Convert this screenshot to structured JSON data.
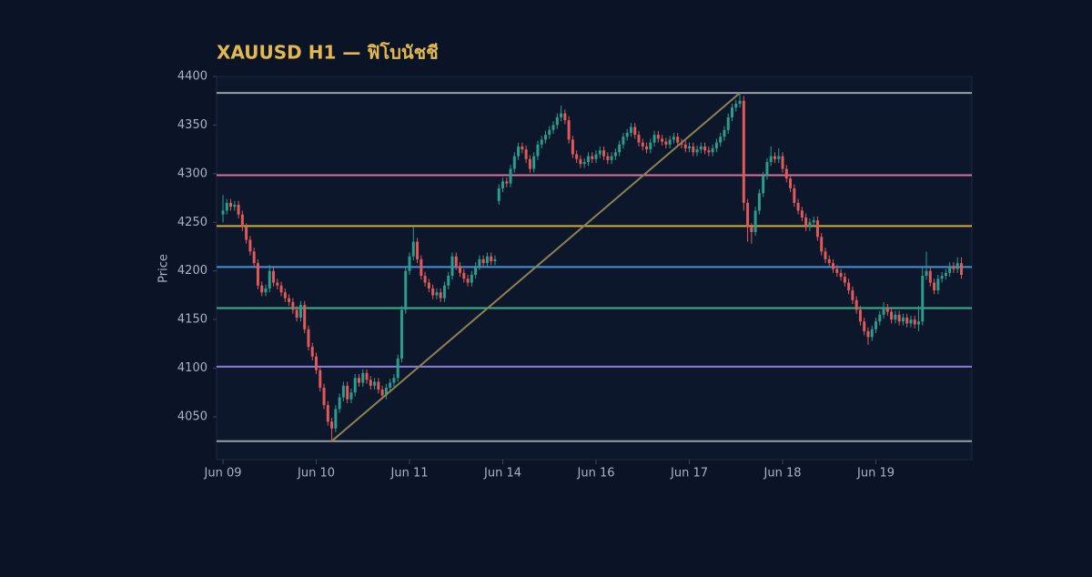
{
  "chart_data": {
    "type": "candlestick",
    "title": "XAUUSD H1 — ฟิโบนัชชี",
    "y_label": "Price",
    "up_color": "#2a9d8f",
    "down_color": "#e05a5a",
    "ylim": [
      4006,
      4400
    ],
    "yticks": [
      4050,
      4100,
      4150,
      4200,
      4250,
      4300,
      4350,
      4400
    ],
    "xlim": [
      -1.64,
      192.7
    ],
    "xticks": [
      {
        "value": 0,
        "label": "Jun 09"
      },
      {
        "value": 24,
        "label": "Jun 10"
      },
      {
        "value": 48,
        "label": "Jun 11"
      },
      {
        "value": 72,
        "label": "Jun 14"
      },
      {
        "value": 96,
        "label": "Jun 16"
      },
      {
        "value": 120,
        "label": "Jun 17"
      },
      {
        "value": 144,
        "label": "Jun 18"
      },
      {
        "value": 168,
        "label": "Jun 19"
      }
    ],
    "fib": {
      "low": 4025,
      "high": 4383,
      "low_index": 28,
      "high_index": 133,
      "trend_color": "#8f8150",
      "levels": [
        {
          "value": 4383,
          "color": "#9aa0a8"
        },
        {
          "value": 4298.5,
          "color": "#d9739a"
        },
        {
          "value": 4246.2,
          "color": "#d4a935"
        },
        {
          "value": 4204,
          "color": "#4a90d9"
        },
        {
          "value": 4161.8,
          "color": "#35b58a"
        },
        {
          "value": 4101.6,
          "color": "#8a7fd6"
        },
        {
          "value": 4025,
          "color": "#9aa0a8"
        }
      ]
    },
    "candles": [
      [
        4258,
        4278,
        4250,
        4262
      ],
      [
        4262,
        4274,
        4258,
        4270
      ],
      [
        4270,
        4274,
        4262,
        4266
      ],
      [
        4266,
        4272,
        4262,
        4268
      ],
      [
        4268,
        4272,
        4254,
        4258
      ],
      [
        4258,
        4262,
        4241,
        4245
      ],
      [
        4245,
        4249,
        4228,
        4232
      ],
      [
        4232,
        4236,
        4216,
        4220
      ],
      [
        4220,
        4224,
        4204,
        4208
      ],
      [
        4208,
        4212,
        4181,
        4185
      ],
      [
        4185,
        4189,
        4174,
        4178
      ],
      [
        4178,
        4186,
        4174,
        4182
      ],
      [
        4182,
        4206,
        4178,
        4200
      ],
      [
        4200,
        4204,
        4184,
        4188
      ],
      [
        4188,
        4192,
        4181,
        4185
      ],
      [
        4185,
        4189,
        4174,
        4178
      ],
      [
        4178,
        4182,
        4168,
        4172
      ],
      [
        4172,
        4176,
        4164,
        4168
      ],
      [
        4168,
        4172,
        4156,
        4160
      ],
      [
        4160,
        4164,
        4148,
        4152
      ],
      [
        4152,
        4169,
        4148,
        4165
      ],
      [
        4165,
        4169,
        4136,
        4140
      ],
      [
        4140,
        4144,
        4118,
        4122
      ],
      [
        4122,
        4126,
        4108,
        4112
      ],
      [
        4112,
        4116,
        4094,
        4098
      ],
      [
        4098,
        4102,
        4076,
        4080
      ],
      [
        4080,
        4084,
        4058,
        4062
      ],
      [
        4062,
        4066,
        4041,
        4045
      ],
      [
        4045,
        4049,
        4025,
        4038
      ],
      [
        4038,
        4062,
        4034,
        4058
      ],
      [
        4058,
        4074,
        4054,
        4070
      ],
      [
        4070,
        4086,
        4066,
        4082
      ],
      [
        4082,
        4086,
        4064,
        4068
      ],
      [
        4068,
        4079,
        4064,
        4075
      ],
      [
        4075,
        4094,
        4071,
        4090
      ],
      [
        4090,
        4094,
        4081,
        4085
      ],
      [
        4085,
        4099,
        4081,
        4095
      ],
      [
        4095,
        4099,
        4084,
        4088
      ],
      [
        4088,
        4092,
        4078,
        4082
      ],
      [
        4082,
        4090,
        4078,
        4086
      ],
      [
        4086,
        4090,
        4074,
        4078
      ],
      [
        4078,
        4082,
        4068,
        4072
      ],
      [
        4072,
        4084,
        4068,
        4080
      ],
      [
        4080,
        4089,
        4076,
        4085
      ],
      [
        4085,
        4094,
        4081,
        4090
      ],
      [
        4090,
        4114,
        4086,
        4110
      ],
      [
        4110,
        4164,
        4106,
        4160
      ],
      [
        4160,
        4204,
        4156,
        4200
      ],
      [
        4200,
        4219,
        4196,
        4215
      ],
      [
        4215,
        4245,
        4211,
        4230
      ],
      [
        4230,
        4234,
        4208,
        4212
      ],
      [
        4212,
        4216,
        4191,
        4195
      ],
      [
        4195,
        4199,
        4184,
        4188
      ],
      [
        4188,
        4192,
        4178,
        4182
      ],
      [
        4182,
        4186,
        4171,
        4175
      ],
      [
        4175,
        4182,
        4171,
        4178
      ],
      [
        4178,
        4182,
        4168,
        4172
      ],
      [
        4172,
        4189,
        4168,
        4185
      ],
      [
        4185,
        4199,
        4181,
        4195
      ],
      [
        4195,
        4219,
        4191,
        4215
      ],
      [
        4215,
        4219,
        4201,
        4205
      ],
      [
        4205,
        4209,
        4194,
        4198
      ],
      [
        4198,
        4202,
        4188,
        4192
      ],
      [
        4192,
        4196,
        4184,
        4188
      ],
      [
        4188,
        4200,
        4184,
        4196
      ],
      [
        4196,
        4209,
        4192,
        4205
      ],
      [
        4205,
        4216,
        4201,
        4212
      ],
      [
        4212,
        4216,
        4204,
        4208
      ],
      [
        4208,
        4219,
        4204,
        4215
      ],
      [
        4215,
        4219,
        4206,
        4210
      ],
      [
        4210,
        4216,
        4206,
        4212
      ],
      [
        4272,
        4289,
        4268,
        4285
      ],
      [
        4285,
        4296,
        4281,
        4292
      ],
      [
        4292,
        4296,
        4286,
        4290
      ],
      [
        4290,
        4309,
        4286,
        4305
      ],
      [
        4305,
        4322,
        4301,
        4318
      ],
      [
        4318,
        4332,
        4314,
        4328
      ],
      [
        4328,
        4332,
        4321,
        4325
      ],
      [
        4325,
        4329,
        4311,
        4315
      ],
      [
        4315,
        4319,
        4301,
        4305
      ],
      [
        4305,
        4322,
        4301,
        4318
      ],
      [
        4318,
        4334,
        4314,
        4330
      ],
      [
        4330,
        4339,
        4326,
        4335
      ],
      [
        4335,
        4344,
        4331,
        4340
      ],
      [
        4340,
        4349,
        4336,
        4345
      ],
      [
        4345,
        4354,
        4341,
        4350
      ],
      [
        4350,
        4362,
        4346,
        4358
      ],
      [
        4358,
        4370,
        4354,
        4362
      ],
      [
        4362,
        4366,
        4351,
        4355
      ],
      [
        4355,
        4359,
        4331,
        4335
      ],
      [
        4335,
        4339,
        4316,
        4320
      ],
      [
        4320,
        4324,
        4311,
        4315
      ],
      [
        4315,
        4319,
        4306,
        4310
      ],
      [
        4310,
        4316,
        4306,
        4312
      ],
      [
        4312,
        4322,
        4308,
        4318
      ],
      [
        4318,
        4322,
        4311,
        4315
      ],
      [
        4315,
        4324,
        4311,
        4320
      ],
      [
        4320,
        4328,
        4316,
        4324
      ],
      [
        4324,
        4328,
        4314,
        4318
      ],
      [
        4318,
        4322,
        4310,
        4314
      ],
      [
        4314,
        4322,
        4310,
        4318
      ],
      [
        4318,
        4326,
        4314,
        4322
      ],
      [
        4322,
        4334,
        4318,
        4330
      ],
      [
        4330,
        4342,
        4326,
        4338
      ],
      [
        4338,
        4346,
        4334,
        4342
      ],
      [
        4342,
        4352,
        4338,
        4348
      ],
      [
        4348,
        4352,
        4336,
        4340
      ],
      [
        4340,
        4344,
        4328,
        4332
      ],
      [
        4332,
        4336,
        4324,
        4328
      ],
      [
        4328,
        4332,
        4321,
        4325
      ],
      [
        4325,
        4336,
        4321,
        4332
      ],
      [
        4332,
        4344,
        4328,
        4340
      ],
      [
        4340,
        4344,
        4332,
        4336
      ],
      [
        4336,
        4340,
        4329,
        4333
      ],
      [
        4333,
        4337,
        4326,
        4330
      ],
      [
        4330,
        4339,
        4326,
        4335
      ],
      [
        4335,
        4342,
        4331,
        4338
      ],
      [
        4338,
        4342,
        4328,
        4332
      ],
      [
        4332,
        4336,
        4326,
        4330
      ],
      [
        4330,
        4334,
        4322,
        4326
      ],
      [
        4326,
        4332,
        4322,
        4328
      ],
      [
        4328,
        4332,
        4318,
        4322
      ],
      [
        4322,
        4329,
        4318,
        4325
      ],
      [
        4325,
        4332,
        4321,
        4328
      ],
      [
        4328,
        4332,
        4320,
        4324
      ],
      [
        4324,
        4328,
        4318,
        4322
      ],
      [
        4322,
        4330,
        4318,
        4326
      ],
      [
        4326,
        4336,
        4322,
        4332
      ],
      [
        4332,
        4342,
        4328,
        4338
      ],
      [
        4338,
        4349,
        4334,
        4345
      ],
      [
        4345,
        4362,
        4341,
        4358
      ],
      [
        4358,
        4372,
        4354,
        4368
      ],
      [
        4368,
        4376,
        4364,
        4372
      ],
      [
        4372,
        4383,
        4368,
        4375
      ],
      [
        4375,
        4380,
        4262,
        4270
      ],
      [
        4270,
        4274,
        4230,
        4245
      ],
      [
        4245,
        4249,
        4228,
        4240
      ],
      [
        4240,
        4266,
        4236,
        4262
      ],
      [
        4262,
        4284,
        4258,
        4280
      ],
      [
        4280,
        4302,
        4276,
        4298
      ],
      [
        4298,
        4316,
        4294,
        4312
      ],
      [
        4312,
        4328,
        4308,
        4318
      ],
      [
        4318,
        4322,
        4311,
        4315
      ],
      [
        4315,
        4326,
        4311,
        4318
      ],
      [
        4318,
        4322,
        4301,
        4305
      ],
      [
        4305,
        4309,
        4291,
        4295
      ],
      [
        4295,
        4299,
        4281,
        4285
      ],
      [
        4285,
        4289,
        4266,
        4270
      ],
      [
        4270,
        4274,
        4258,
        4262
      ],
      [
        4262,
        4266,
        4251,
        4255
      ],
      [
        4255,
        4259,
        4241,
        4245
      ],
      [
        4245,
        4254,
        4241,
        4250
      ],
      [
        4250,
        4256,
        4246,
        4252
      ],
      [
        4252,
        4256,
        4231,
        4235
      ],
      [
        4235,
        4239,
        4216,
        4220
      ],
      [
        4220,
        4224,
        4208,
        4212
      ],
      [
        4212,
        4216,
        4204,
        4208
      ],
      [
        4208,
        4212,
        4198,
        4202
      ],
      [
        4202,
        4206,
        4194,
        4198
      ],
      [
        4198,
        4202,
        4190,
        4194
      ],
      [
        4194,
        4198,
        4184,
        4188
      ],
      [
        4188,
        4192,
        4176,
        4180
      ],
      [
        4180,
        4184,
        4166,
        4170
      ],
      [
        4170,
        4174,
        4156,
        4160
      ],
      [
        4160,
        4164,
        4144,
        4148
      ],
      [
        4148,
        4152,
        4134,
        4138
      ],
      [
        4138,
        4142,
        4124,
        4132
      ],
      [
        4132,
        4144,
        4128,
        4140
      ],
      [
        4140,
        4152,
        4136,
        4148
      ],
      [
        4148,
        4159,
        4144,
        4155
      ],
      [
        4155,
        4168,
        4151,
        4162
      ],
      [
        4162,
        4166,
        4154,
        4158
      ],
      [
        4158,
        4162,
        4146,
        4150
      ],
      [
        4150,
        4159,
        4146,
        4155
      ],
      [
        4155,
        4159,
        4144,
        4148
      ],
      [
        4148,
        4156,
        4144,
        4152
      ],
      [
        4152,
        4156,
        4142,
        4146
      ],
      [
        4146,
        4154,
        4142,
        4150
      ],
      [
        4150,
        4154,
        4141,
        4145
      ],
      [
        4145,
        4164,
        4138,
        4148
      ],
      [
        4148,
        4205,
        4144,
        4195
      ],
      [
        4195,
        4220,
        4191,
        4200
      ],
      [
        4200,
        4204,
        4184,
        4188
      ],
      [
        4188,
        4192,
        4176,
        4180
      ],
      [
        4180,
        4196,
        4176,
        4192
      ],
      [
        4192,
        4199,
        4188,
        4195
      ],
      [
        4195,
        4202,
        4191,
        4198
      ],
      [
        4198,
        4209,
        4194,
        4205
      ],
      [
        4205,
        4209,
        4198,
        4202
      ],
      [
        4202,
        4214,
        4198,
        4208
      ],
      [
        4208,
        4214,
        4192,
        4196
      ]
    ]
  }
}
